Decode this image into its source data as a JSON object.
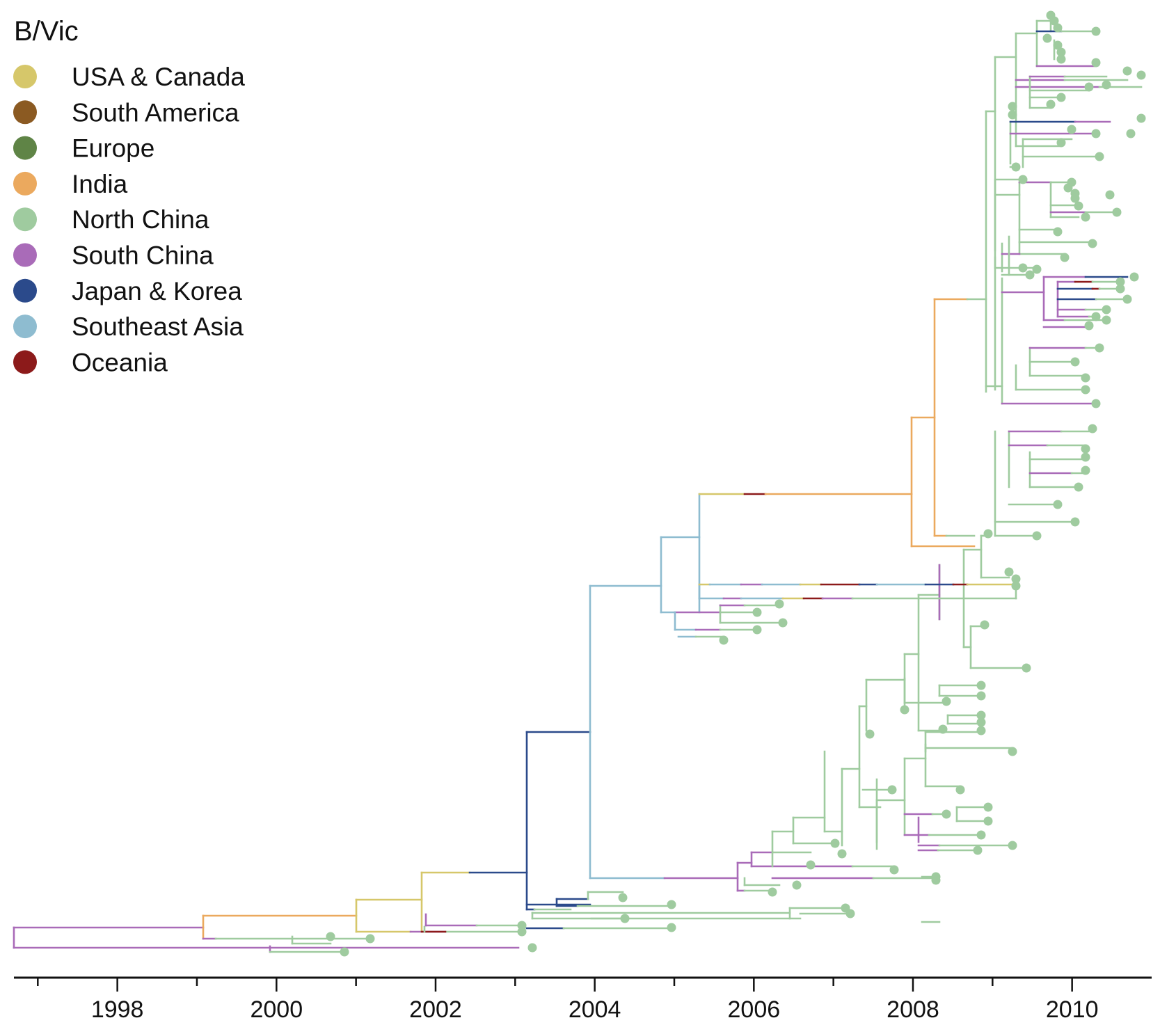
{
  "title": "B/Vic",
  "regions": [
    {
      "key": "usa",
      "label": "USA & Canada",
      "color": "#d6c76a"
    },
    {
      "key": "sam",
      "label": "South America",
      "color": "#8b5a22"
    },
    {
      "key": "eur",
      "label": "Europe",
      "color": "#5f8446"
    },
    {
      "key": "ind",
      "label": "India",
      "color": "#eba95e"
    },
    {
      "key": "nch",
      "label": "North China",
      "color": "#9fcb9f"
    },
    {
      "key": "sch",
      "label": "South China",
      "color": "#a96bb8"
    },
    {
      "key": "jpk",
      "label": "Japan & Korea",
      "color": "#2b4a8b"
    },
    {
      "key": "sea",
      "label": "Southeast Asia",
      "color": "#8ebcd0"
    },
    {
      "key": "oce",
      "label": "Oceania",
      "color": "#8c1a1a"
    }
  ],
  "tip_color": "#9fcb9f",
  "axis": {
    "min": 1996.7,
    "max": 2011.0,
    "labels": [
      "1998",
      "2000",
      "2002",
      "2004",
      "2006",
      "2008",
      "2010"
    ],
    "label_years": [
      1998,
      2000,
      2002,
      2004,
      2006,
      2008,
      2010
    ],
    "minor_tick_years": [
      1997,
      1999,
      2001,
      2003,
      2005,
      2007,
      2009
    ]
  }
}
